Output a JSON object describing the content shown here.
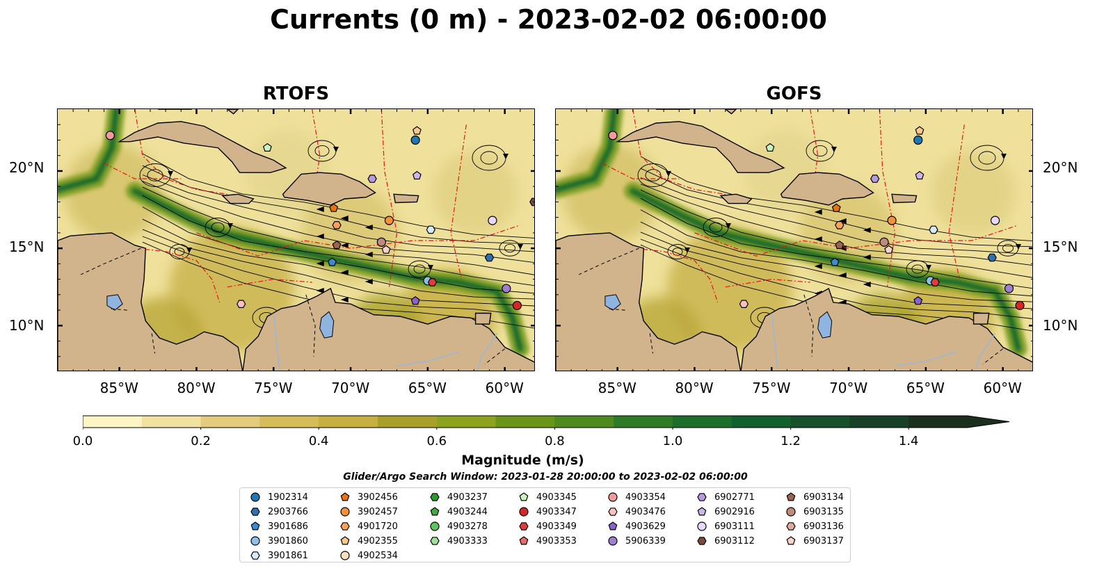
{
  "title": "Currents (0 m) - 2023-02-02 06:00:00",
  "panels": [
    {
      "title": "RTOFS"
    },
    {
      "title": "GOFS"
    }
  ],
  "lon_ticks": [
    "85°W",
    "80°W",
    "75°W",
    "70°W",
    "65°W",
    "60°W"
  ],
  "lat_ticks": [
    "20°N",
    "15°N",
    "10°N"
  ],
  "colorbar": {
    "label": "Magnitude (m/s)",
    "ticks": [
      "0.0",
      "0.2",
      "0.4",
      "0.6",
      "0.8",
      "1.0",
      "1.2",
      "1.4"
    ],
    "min": 0.0,
    "max": 1.5,
    "extend": "max",
    "colors": [
      "#fdf6c4",
      "#f1e2a1",
      "#e3cd7c",
      "#d6bb59",
      "#c8af42",
      "#a9a02b",
      "#8ea31c",
      "#6b9518",
      "#4f8a1e",
      "#2e7b25",
      "#1c6e2b",
      "#11602d",
      "#16512c",
      "#183f27",
      "#1b2f1d"
    ]
  },
  "search_window": "Glider/Argo Search Window: 2023-01-28 20:00:00 to 2023-02-02 06:00:00",
  "legend": [
    {
      "id": "1902314",
      "marker": "circle",
      "color": "#1f77b4"
    },
    {
      "id": "2903766",
      "marker": "hexagon",
      "color": "#2f6fae"
    },
    {
      "id": "3901686",
      "marker": "pentagon",
      "color": "#3b8bd0"
    },
    {
      "id": "3901860",
      "marker": "circle",
      "color": "#8ec1ea"
    },
    {
      "id": "3901861",
      "marker": "hexagon",
      "color": "#d6eaf8"
    },
    {
      "id": "3902456",
      "marker": "pentagon",
      "color": "#e8720c"
    },
    {
      "id": "3902457",
      "marker": "circle",
      "color": "#f6913a"
    },
    {
      "id": "4901720",
      "marker": "hexagon",
      "color": "#fba25a"
    },
    {
      "id": "4902355",
      "marker": "pentagon",
      "color": "#fcc88c"
    },
    {
      "id": "4902534",
      "marker": "circle",
      "color": "#fde0c0"
    },
    {
      "id": "4903237",
      "marker": "hexagon",
      "color": "#2a9a2a"
    },
    {
      "id": "4903244",
      "marker": "pentagon",
      "color": "#3fae3f"
    },
    {
      "id": "4903278",
      "marker": "circle",
      "color": "#5ec55e"
    },
    {
      "id": "4903333",
      "marker": "hexagon",
      "color": "#9fe09a"
    },
    {
      "id": "4903345",
      "marker": "pentagon",
      "color": "#c8f5c0"
    },
    {
      "id": "4903347",
      "marker": "circle",
      "color": "#d62728"
    },
    {
      "id": "4903349",
      "marker": "hexagon",
      "color": "#e03c3c"
    },
    {
      "id": "4903353",
      "marker": "pentagon",
      "color": "#f06a6a"
    },
    {
      "id": "4903354",
      "marker": "circle",
      "color": "#f59a9a"
    },
    {
      "id": "4903476",
      "marker": "hexagon",
      "color": "#fbc0c0"
    },
    {
      "id": "4903629",
      "marker": "pentagon",
      "color": "#8a63c8"
    },
    {
      "id": "5906339",
      "marker": "circle",
      "color": "#a07fd1"
    },
    {
      "id": "6902771",
      "marker": "hexagon",
      "color": "#b89ae0"
    },
    {
      "id": "6902916",
      "marker": "pentagon",
      "color": "#cfb5ee"
    },
    {
      "id": "6903111",
      "marker": "circle",
      "color": "#e8d8fb"
    },
    {
      "id": "6903112",
      "marker": "hexagon",
      "color": "#7a4a3a"
    },
    {
      "id": "6903134",
      "marker": "pentagon",
      "color": "#9a6450"
    },
    {
      "id": "6903135",
      "marker": "circle",
      "color": "#c08c7a"
    },
    {
      "id": "6903136",
      "marker": "hexagon",
      "color": "#e3a99a"
    },
    {
      "id": "6903137",
      "marker": "pentagon",
      "color": "#f8d3c6"
    }
  ],
  "floats": [
    {
      "id": "1902314",
      "lon": -65.8,
      "lat": 22.0
    },
    {
      "id": "3902456",
      "lon": -71.1,
      "lat": 17.6
    },
    {
      "id": "3902457",
      "lon": -67.5,
      "lat": 16.8
    },
    {
      "id": "4901720",
      "lon": -70.9,
      "lat": 16.5
    },
    {
      "id": "4902355",
      "lon": -65.7,
      "lat": 22.6
    },
    {
      "id": "6902916",
      "lon": -65.7,
      "lat": 19.7
    },
    {
      "id": "6902771",
      "lon": -68.6,
      "lat": 19.5
    },
    {
      "id": "3901861",
      "lon": -64.8,
      "lat": 16.2
    },
    {
      "id": "6903111",
      "lon": -60.8,
      "lat": 16.8
    },
    {
      "id": "6903112",
      "lon": -58.1,
      "lat": 18.0
    },
    {
      "id": "6903135",
      "lon": -68.0,
      "lat": 15.4
    },
    {
      "id": "6903137",
      "lon": -67.7,
      "lat": 14.9
    },
    {
      "id": "6903134",
      "lon": -70.9,
      "lat": 15.2
    },
    {
      "id": "3901686",
      "lon": -71.2,
      "lat": 14.1
    },
    {
      "id": "3901860",
      "lon": -65.0,
      "lat": 12.9
    },
    {
      "id": "4903349",
      "lon": -64.7,
      "lat": 12.8
    },
    {
      "id": "4903629",
      "lon": -65.8,
      "lat": 11.6
    },
    {
      "id": "5906339",
      "lon": -59.9,
      "lat": 12.4
    },
    {
      "id": "4903347",
      "lon": -59.2,
      "lat": 11.3
    },
    {
      "id": "4903354",
      "lon": -85.6,
      "lat": 22.3
    },
    {
      "id": "4903345",
      "lon": -75.4,
      "lat": 21.5
    },
    {
      "id": "4903476",
      "lon": -77.1,
      "lat": 11.4
    },
    {
      "id": "2903766",
      "lon": -61.0,
      "lat": 14.4
    }
  ]
}
